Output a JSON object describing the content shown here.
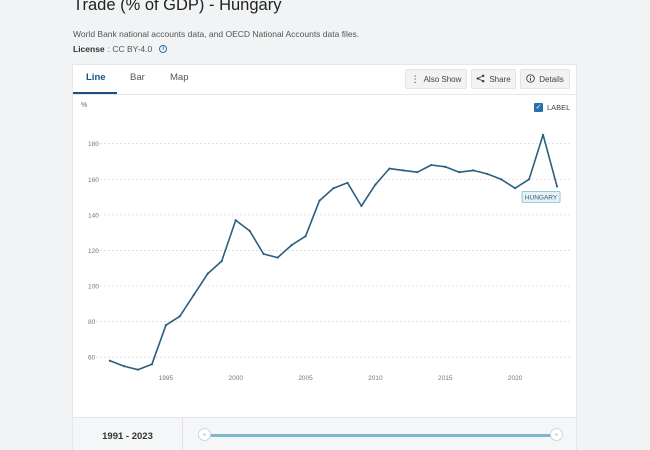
{
  "page": {
    "title": "Trade (% of GDP) - Hungary",
    "subtitle": "World Bank national accounts data, and OECD National Accounts data files.",
    "license_label": "License",
    "license_value": ": CC BY-4.0"
  },
  "tabs": [
    {
      "label": "Line",
      "active": true
    },
    {
      "label": "Bar",
      "active": false
    },
    {
      "label": "Map",
      "active": false
    }
  ],
  "toolbar": {
    "also_show": "Also Show",
    "share": "Share",
    "details": "Details"
  },
  "label_toggle": {
    "label": "LABEL",
    "checked": true
  },
  "range": {
    "label": "1991 - 2023"
  },
  "colors": {
    "line": "#2c5f7f",
    "accent": "#2a6ead",
    "slider": "#7fb7d1"
  },
  "chart_data": {
    "type": "line",
    "ylabel": "%",
    "ylim": [
      50,
      195
    ],
    "yticks": [
      60,
      80,
      100,
      120,
      140,
      160,
      180
    ],
    "xticks": [
      1995,
      2000,
      2005,
      2010,
      2015,
      2020
    ],
    "xlim": [
      1990,
      2024
    ],
    "grid": true,
    "series": [
      {
        "name": "HUNGARY",
        "x": [
          1991,
          1992,
          1993,
          1994,
          1995,
          1996,
          1997,
          1998,
          1999,
          2000,
          2001,
          2002,
          2003,
          2004,
          2005,
          2006,
          2007,
          2008,
          2009,
          2010,
          2011,
          2012,
          2013,
          2014,
          2015,
          2016,
          2017,
          2018,
          2019,
          2020,
          2021,
          2022,
          2023
        ],
        "values": [
          58,
          55,
          53,
          56,
          78,
          83,
          95,
          107,
          114,
          137,
          131,
          118,
          116,
          123,
          128,
          148,
          155,
          158,
          145,
          157,
          166,
          165,
          164,
          168,
          167,
          164,
          165,
          163,
          160,
          155,
          160,
          185,
          156
        ]
      }
    ]
  }
}
